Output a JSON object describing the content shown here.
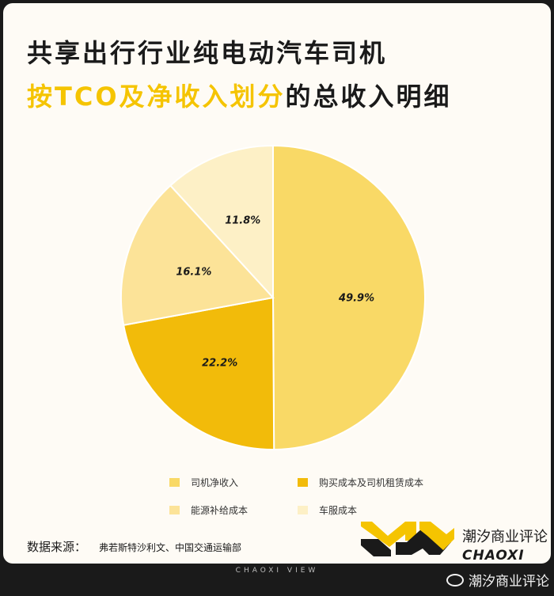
{
  "title": {
    "line1": "共享出行行业纯电动汽车司机",
    "line2_highlight": "按TCO及净收入划分",
    "line2_rest": "的总收入明细"
  },
  "chart_data": {
    "type": "pie",
    "categories": [
      "司机净收入",
      "购买成本及司机租赁成本",
      "能源补给成本",
      "车服成本"
    ],
    "values": [
      49.9,
      22.2,
      16.1,
      11.8
    ],
    "labels": [
      "49.9%",
      "22.2%",
      "16.1%",
      "11.8%"
    ],
    "colors": [
      "#f9d966",
      "#f2bb0a",
      "#fce398",
      "#fdf0c6"
    ],
    "title": "共享出行行业纯电动汽车司机按TCO及净收入划分的总收入明细",
    "legend_position": "bottom"
  },
  "legend": [
    {
      "label": "司机净收入",
      "color": "#f9d966"
    },
    {
      "label": "购买成本及司机租赁成本",
      "color": "#f2bb0a"
    },
    {
      "label": "能源补给成本",
      "color": "#fce398"
    },
    {
      "label": "车服成本",
      "color": "#fdf0c6"
    }
  ],
  "source": {
    "label": "数据来源：",
    "value": "弗若斯特沙利文、中国交通运输部"
  },
  "brand": {
    "cn": "潮汐商业评论",
    "en": "CHAOXI"
  },
  "footer": "CHAOXI VIEW",
  "watermark": "潮汐商业评论"
}
